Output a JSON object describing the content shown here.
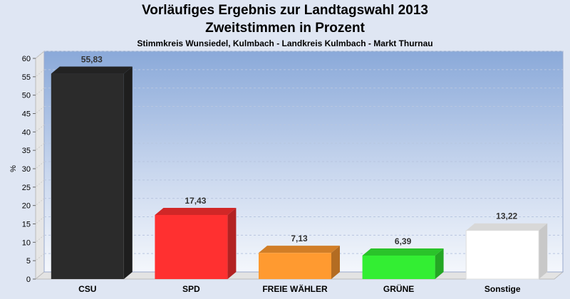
{
  "header": {
    "title": "Vorläufiges Ergebnis zur Landtagswahl 2013",
    "subtitle": "Zweitstimmen in Prozent",
    "region": "Stimmkreis Wunsiedel, Kulmbach - Landkreis Kulmbach - Markt Thurnau"
  },
  "chart_data": {
    "type": "bar",
    "title": "Vorläufiges Ergebnis zur Landtagswahl 2013",
    "subtitle": "Zweitstimmen in Prozent",
    "xlabel": "",
    "ylabel": "%",
    "ylim": [
      0,
      60
    ],
    "yticks": [
      0,
      5,
      10,
      15,
      20,
      25,
      30,
      35,
      40,
      45,
      50,
      55,
      60
    ],
    "grid": true,
    "categories": [
      "CSU",
      "SPD",
      "FREIE WÄHLER",
      "GRÜNE",
      "Sonstige"
    ],
    "values": [
      55.83,
      17.43,
      7.13,
      6.39,
      13.22
    ],
    "value_labels": [
      "55,83",
      "17,43",
      "7,13",
      "6,39",
      "13,22"
    ],
    "colors": [
      "#2b2b2b",
      "#ff3030",
      "#ff9a30",
      "#33ee33",
      "#ffffff"
    ]
  }
}
